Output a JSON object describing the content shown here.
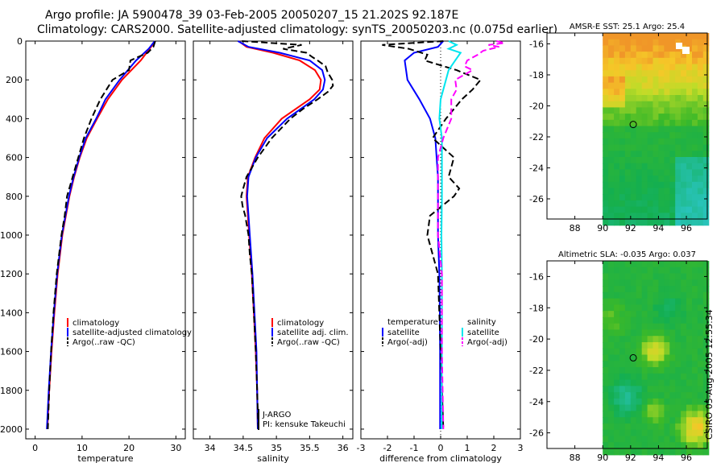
{
  "header": {
    "title_line1": "Argo profile: JA 5900478_39 03-Feb-2005 20050207_15 21.202S 92.187E",
    "title_line2": "Climatology: CARS2000. Satellite-adjusted climatology: synTS_20050203.nc (0.075d earlier)"
  },
  "footer": {
    "stamp": "CSIRO 05-Aug-2005 12:55:34"
  },
  "colors": {
    "climatology": "#ff0000",
    "satellite": "#0000ff",
    "argo": "#000000",
    "sat_salinity": "#00e5ee",
    "argo_salinity": "#ff00ff"
  },
  "chart_data": [
    {
      "type": "line",
      "name": "temperature",
      "xlabel": "temperature",
      "xlim": [
        -2,
        32
      ],
      "xticks": [
        "0",
        "10",
        "20",
        "30"
      ],
      "ylim": [
        2050,
        0
      ],
      "yticks": [
        "0",
        "200",
        "400",
        "600",
        "800",
        "1000",
        "1200",
        "1400",
        "1600",
        "1800",
        "2000"
      ],
      "legend": [
        "climatology",
        "satellite-adjusted climatology",
        "Argo(..raw -QC)"
      ],
      "series": [
        {
          "name": "climatology",
          "depth": [
            0,
            40,
            100,
            200,
            300,
            400,
            500,
            600,
            700,
            800,
            1000,
            1200,
            1400,
            1600,
            1800,
            2000
          ],
          "values": [
            25.6,
            24.4,
            22.5,
            18.5,
            15.5,
            13.2,
            11.0,
            9.5,
            8.3,
            7.3,
            5.8,
            4.8,
            4.1,
            3.5,
            3.0,
            2.6
          ]
        },
        {
          "name": "satellite-adjusted climatology",
          "depth": [
            0,
            40,
            100,
            200,
            300,
            400,
            500,
            600,
            700,
            800,
            1000,
            1200,
            1400,
            1600,
            1800,
            2000
          ],
          "values": [
            25.5,
            24.2,
            21.5,
            18.0,
            15.0,
            13.0,
            10.8,
            9.4,
            8.2,
            7.2,
            5.7,
            4.7,
            4.0,
            3.4,
            2.9,
            2.5
          ]
        },
        {
          "name": "Argo(..raw -QC)",
          "depth": [
            0,
            30,
            60,
            100,
            150,
            200,
            250,
            300,
            400,
            500,
            600,
            700,
            800,
            900,
            1000,
            1200,
            1400,
            1600,
            1800,
            2000
          ],
          "values": [
            25.6,
            25.2,
            24.0,
            20.3,
            20.0,
            16.5,
            15.2,
            13.9,
            12.0,
            10.4,
            9.2,
            8.0,
            6.8,
            6.3,
            5.6,
            4.6,
            3.9,
            3.4,
            3.0,
            2.7
          ]
        }
      ]
    },
    {
      "type": "line",
      "name": "salinity",
      "xlabel": "salinity",
      "xlim": [
        33.75,
        36.15
      ],
      "xticks": [
        "34",
        "34.5",
        "35",
        "35.5",
        "36"
      ],
      "ylim": [
        2050,
        0
      ],
      "legend": [
        "climatology",
        "satellite adj. clim.",
        "Argo(..raw -QC)"
      ],
      "annotations": [
        "J-ARGO",
        "PI: kensuke Takeuchi"
      ],
      "series": [
        {
          "name": "climatology",
          "depth": [
            0,
            30,
            60,
            100,
            150,
            200,
            250,
            300,
            400,
            500,
            600,
            700,
            800,
            900,
            1000,
            1200,
            1400,
            1600,
            1800,
            2000
          ],
          "values": [
            34.43,
            34.55,
            34.95,
            35.35,
            35.58,
            35.67,
            35.65,
            35.5,
            35.08,
            34.82,
            34.68,
            34.57,
            34.55,
            34.57,
            34.59,
            34.63,
            34.66,
            34.69,
            34.71,
            34.72
          ]
        },
        {
          "name": "satellite adj. clim.",
          "depth": [
            0,
            30,
            60,
            100,
            150,
            200,
            250,
            300,
            400,
            500,
            600,
            700,
            800,
            900,
            1000,
            1200,
            1400,
            1600,
            1800,
            2000
          ],
          "values": [
            34.42,
            34.58,
            35.05,
            35.5,
            35.69,
            35.73,
            35.7,
            35.57,
            35.16,
            34.86,
            34.69,
            34.58,
            34.56,
            34.58,
            34.6,
            34.64,
            34.67,
            34.7,
            34.71,
            34.72
          ]
        },
        {
          "name": "Argo(..raw -QC)",
          "depth": [
            0,
            20,
            40,
            60,
            80,
            100,
            130,
            160,
            200,
            230,
            260,
            300,
            350,
            400,
            500,
            600,
            700,
            760,
            800,
            850,
            900,
            1000,
            1100,
            1200,
            1400,
            1600,
            1800,
            2000
          ],
          "values": [
            34.48,
            35.38,
            35.1,
            35.45,
            35.53,
            35.62,
            35.74,
            35.77,
            35.84,
            35.85,
            35.78,
            35.62,
            35.4,
            35.21,
            34.93,
            34.72,
            34.55,
            34.5,
            34.47,
            34.49,
            34.53,
            34.58,
            34.6,
            34.63,
            34.66,
            34.69,
            34.71,
            34.73
          ]
        }
      ]
    },
    {
      "type": "line",
      "name": "difference",
      "xlabel": "difference from climatology",
      "xlim": [
        -3,
        3
      ],
      "xticks": [
        "-3",
        "-2",
        "-1",
        "0",
        "1",
        "2",
        "3"
      ],
      "ylim": [
        2050,
        0
      ],
      "legend_temperature": {
        "title": "temperature",
        "items": [
          "satellite",
          "Argo(-adj)"
        ]
      },
      "legend_salinity": {
        "title": "salinity",
        "items": [
          "satellite",
          "Argo(-adj)"
        ]
      },
      "series": [
        {
          "name": "temperature satellite",
          "depth": [
            0,
            30,
            60,
            100,
            150,
            200,
            300,
            400,
            500,
            600,
            700,
            800,
            1000,
            1200,
            1400,
            1600,
            1800,
            2000
          ],
          "values": [
            0.1,
            -0.1,
            -1.0,
            -1.35,
            -1.3,
            -1.25,
            -0.8,
            -0.4,
            -0.2,
            -0.15,
            -0.1,
            -0.1,
            -0.1,
            -0.05,
            -0.03,
            -0.02,
            -0.02,
            -0.02
          ]
        },
        {
          "name": "temperature Argo(-adj)",
          "depth": [
            0,
            20,
            40,
            70,
            100,
            150,
            200,
            250,
            300,
            400,
            500,
            600,
            700,
            760,
            800,
            900,
            1000,
            1200,
            1600,
            2000
          ],
          "values": [
            0.1,
            -2.2,
            -1.2,
            -0.5,
            -0.6,
            0.6,
            1.5,
            1.2,
            0.8,
            0.2,
            -0.3,
            0.5,
            0.3,
            0.7,
            0.5,
            -0.4,
            -0.5,
            -0.1,
            0,
            0.1
          ]
        },
        {
          "name": "salinity satellite",
          "depth": [
            0,
            20,
            40,
            60,
            100,
            150,
            200,
            300,
            400,
            500,
            600,
            800,
            1000,
            1200,
            1400,
            1600,
            1800,
            2000
          ],
          "values": [
            0.3,
            0.6,
            0.3,
            0.75,
            0.55,
            0.3,
            0.2,
            0,
            -0.05,
            0.05,
            0.05,
            0.05,
            0.03,
            0.05,
            0.05,
            0.05,
            0.04,
            0.04
          ]
        },
        {
          "name": "salinity Argo(-adj)",
          "depth": [
            0,
            10,
            20,
            30,
            50,
            70,
            100,
            130,
            150,
            200,
            250,
            300,
            400,
            500,
            600,
            700,
            800,
            1000,
            1200,
            1400,
            1600,
            2000
          ],
          "values": [
            2.1,
            2.4,
            1.8,
            2.2,
            1.6,
            1.4,
            1.0,
            0.9,
            1.2,
            0.55,
            0.6,
            0.4,
            0.4,
            0.1,
            -0.1,
            -0.1,
            -0.1,
            -0.1,
            0.05,
            0.05,
            0.05,
            0.1
          ]
        }
      ]
    },
    {
      "type": "heatmap",
      "name": "sst_map",
      "title": "AMSR-E SST: 25.1 Argo: 25.4",
      "xlim": [
        86,
        97.5
      ],
      "ylim": [
        -27.3,
        -15.3
      ],
      "xticks": [
        "88",
        "90",
        "92",
        "94",
        "96"
      ],
      "yticks": [
        "-16",
        "-18",
        "-20",
        "-22",
        "-24",
        "-26"
      ],
      "marker": {
        "lon": 92.187,
        "lat": -21.202
      }
    },
    {
      "type": "heatmap",
      "name": "sla_map",
      "title": "Altimetric SLA: -0.035 Argo: 0.037",
      "xlim": [
        86,
        97.5
      ],
      "ylim": [
        -27.0,
        -15.0
      ],
      "xticks": [
        "88",
        "90",
        "92",
        "94",
        "96"
      ],
      "yticks": [
        "-16",
        "-18",
        "-20",
        "-22",
        "-24",
        "-26"
      ],
      "marker": {
        "lon": 92.187,
        "lat": -21.202
      }
    }
  ]
}
